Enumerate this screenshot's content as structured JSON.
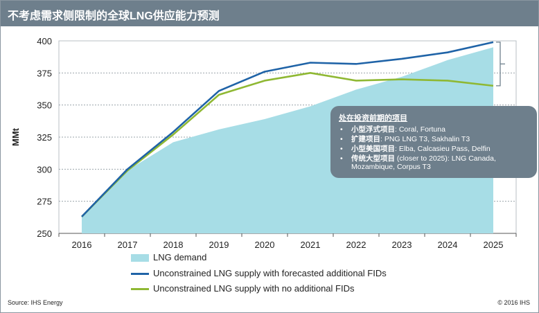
{
  "title": "不考虑需求侧限制的全球LNG供应能力预测",
  "colors": {
    "title_bar": "#6e7f8c",
    "demand_fill": "#a7dde6",
    "forecasted_line": "#1f63a7",
    "no_fid_line": "#8fb833",
    "callout_bg": "#6e7f8c"
  },
  "chart_data": {
    "type": "area",
    "title": "",
    "xlabel": "",
    "ylabel": "MMt",
    "ylim": [
      250,
      400
    ],
    "yticks": [
      "250",
      "275",
      "300",
      "325",
      "350",
      "375",
      "400"
    ],
    "categories": [
      "2016",
      "2017",
      "2018",
      "2019",
      "2020",
      "2021",
      "2022",
      "2023",
      "2024",
      "2025"
    ],
    "series": [
      {
        "name": "LNG demand",
        "kind": "area",
        "values": [
          264,
          299,
          321,
          331,
          339,
          349,
          362,
          372,
          385,
          395
        ]
      },
      {
        "name": "Unconstrained LNG supply with forecasted additional FIDs",
        "kind": "line",
        "values": [
          263,
          300,
          329,
          361,
          376,
          383,
          382,
          386,
          391,
          399
        ]
      },
      {
        "name": "Unconstrained LNG supply with no additional FIDs",
        "kind": "line",
        "values": [
          263,
          299,
          327,
          358,
          369,
          375,
          369,
          370,
          369,
          365
        ]
      }
    ],
    "grid": true,
    "legend_position": "bottom"
  },
  "callout": {
    "title": "处在投资前期的项目",
    "items": [
      {
        "bullet": "•",
        "bold": "小型浮式项目",
        "text": ": Coral, Fortuna"
      },
      {
        "bullet": "•",
        "bold": "扩建项目",
        "text": ": PNG LNG T3, Sakhalin T3"
      },
      {
        "bullet": "•",
        "bold": "小型美国项目",
        "text": ": Elba, Calcasieu Pass, Delfin"
      },
      {
        "bullet": "•",
        "bold": "传统大型项目",
        "text": " (closer to 2025): LNG Canada,"
      }
    ],
    "continuation": "Mozambique, Corpus T3"
  },
  "footer": {
    "source": "Source: IHS Energy",
    "copyright": "© 2016 IHS"
  }
}
